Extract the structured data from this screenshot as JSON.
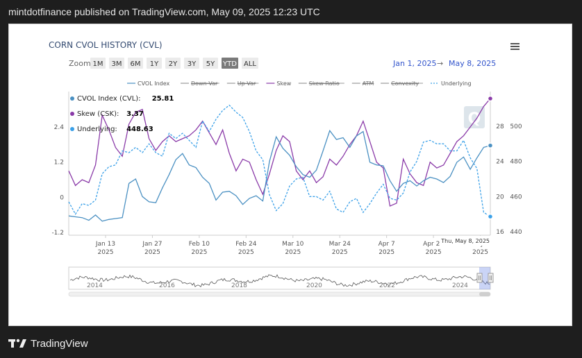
{
  "header": {
    "text": "mintdotfinance published on TradingView.com, May 09, 2025 12:23 UTC"
  },
  "footer": {
    "brand": "TradingView"
  },
  "chart": {
    "title": "CORN CVOL HISTORY (CVL)",
    "zoom_label": "Zoom",
    "zoom_buttons": [
      "1M",
      "3M",
      "6M",
      "1Y",
      "2Y",
      "3Y",
      "5Y",
      "YTD",
      "ALL"
    ],
    "zoom_active": "YTD",
    "date_from": "Jan 1, 2025",
    "date_arrow": "→",
    "date_to": "May 8, 2025",
    "menu_icon": "hamburger-menu-icon",
    "tooltip": {
      "rows": [
        {
          "label": "CVOL Index (CVL):",
          "value": "25.81",
          "color": "#4a90c2"
        },
        {
          "label": "Skew (CSK):",
          "value": "3.37",
          "color": "#8a3aa8"
        },
        {
          "label": "Underlying:",
          "value": "448.63",
          "color": "#3aa0e8"
        }
      ]
    },
    "crosshair_label": "Thu, May 8, 2025",
    "navigator_years": [
      "2014",
      "2016",
      "2018",
      "2020",
      "2022",
      "2024"
    ]
  },
  "chart_data": {
    "type": "line",
    "x_tick_labels": [
      [
        "Jan 13",
        "2025"
      ],
      [
        "Jan 27",
        "2025"
      ],
      [
        "Feb 10",
        "2025"
      ],
      [
        "Feb 24",
        "2025"
      ],
      [
        "Mar 10",
        "2025"
      ],
      [
        "Mar 24",
        "2025"
      ],
      [
        "Apr 7",
        "2025"
      ],
      [
        "Apr 21",
        "2025"
      ],
      [
        "May 5",
        "2025"
      ]
    ],
    "x_tick_days": [
      12,
      26,
      40,
      54,
      68,
      82,
      96,
      110,
      124
    ],
    "x_range": [
      1,
      127
    ],
    "left_axis": {
      "ticks": [
        "2.4",
        "1.2",
        "0",
        "-1.2"
      ],
      "tick_values": [
        2.4,
        1.2,
        0,
        -1.2
      ],
      "range": [
        -1.2,
        3.4
      ]
    },
    "cvol_axis": {
      "ticks": [
        "28",
        "24",
        "20",
        "16"
      ],
      "tick_values": [
        28,
        24,
        20,
        16
      ],
      "range": [
        16,
        32
      ]
    },
    "underlying_axis": {
      "ticks": [
        "500",
        "480",
        "460",
        "440"
      ],
      "tick_values": [
        500,
        480,
        460,
        440
      ],
      "range": [
        440,
        520
      ]
    },
    "legend": [
      {
        "name": "CVOL Index",
        "color": "#4a90c2",
        "dash": "solid",
        "visible": true
      },
      {
        "name": "Down Var",
        "color": "#888888",
        "dash": "solid",
        "visible": false
      },
      {
        "name": "Up Var",
        "color": "#888888",
        "dash": "solid",
        "visible": false
      },
      {
        "name": "Skew",
        "color": "#8a3aa8",
        "dash": "solid",
        "visible": true
      },
      {
        "name": "Skew Ratio",
        "color": "#888888",
        "dash": "solid",
        "visible": false
      },
      {
        "name": "ATM",
        "color": "#888888",
        "dash": "solid",
        "visible": false
      },
      {
        "name": "Convexity",
        "color": "#888888",
        "dash": "solid",
        "visible": false
      },
      {
        "name": "Underlying",
        "color": "#3aa0e8",
        "dash": "dashed",
        "visible": true
      }
    ],
    "series": [
      {
        "name": "Skew",
        "axis": "left",
        "color": "#8a3aa8",
        "x": [
          1,
          3,
          5,
          7,
          9,
          11,
          13,
          15,
          17,
          19,
          21,
          23,
          25,
          27,
          29,
          31,
          33,
          35,
          37,
          39,
          41,
          43,
          45,
          47,
          49,
          51,
          53,
          55,
          57,
          59,
          61,
          63,
          65,
          67,
          69,
          71,
          73,
          75,
          77,
          79,
          81,
          83,
          85,
          87,
          89,
          91,
          93,
          95,
          97,
          99,
          101,
          103,
          105,
          107,
          109,
          111,
          113,
          115,
          117,
          119,
          121,
          123,
          125,
          127
        ],
        "values": [
          0.9,
          0.4,
          0.6,
          0.5,
          1.1,
          2.8,
          2.3,
          1.7,
          1.4,
          2.5,
          2.9,
          3.0,
          2.0,
          1.6,
          1.9,
          2.1,
          1.9,
          2.0,
          2.1,
          2.3,
          2.6,
          2.2,
          1.8,
          2.3,
          1.5,
          0.9,
          1.3,
          1.2,
          0.6,
          0.1,
          0.8,
          1.6,
          2.1,
          1.9,
          0.9,
          0.6,
          0.9,
          0.5,
          0.7,
          1.3,
          1.1,
          1.4,
          1.8,
          2.1,
          2.6,
          1.9,
          1.2,
          1.0,
          -0.3,
          -0.2,
          1.3,
          0.8,
          0.5,
          0.4,
          1.2,
          1.0,
          1.1,
          1.5,
          1.9,
          2.1,
          2.4,
          2.7,
          3.1,
          3.37
        ]
      },
      {
        "name": "CVOL Index",
        "axis": "cvol",
        "color": "#4a90c2",
        "x": [
          1,
          3,
          5,
          7,
          9,
          11,
          13,
          15,
          17,
          19,
          21,
          23,
          25,
          27,
          29,
          31,
          33,
          35,
          37,
          39,
          41,
          43,
          45,
          47,
          49,
          51,
          53,
          55,
          57,
          59,
          61,
          63,
          65,
          67,
          69,
          71,
          73,
          75,
          77,
          79,
          81,
          83,
          85,
          87,
          89,
          91,
          93,
          95,
          97,
          99,
          101,
          103,
          105,
          107,
          109,
          111,
          113,
          115,
          117,
          119,
          121,
          123,
          125,
          127
        ],
        "values": [
          17.8,
          17.7,
          17.6,
          17.3,
          17.9,
          17.2,
          17.4,
          17.5,
          17.6,
          21.5,
          22.0,
          20.0,
          19.4,
          19.3,
          21.0,
          22.5,
          24.2,
          24.9,
          23.6,
          23.3,
          22.2,
          21.5,
          19.6,
          20.5,
          20.6,
          20.1,
          19.1,
          19.8,
          20.1,
          19.5,
          24.0,
          26.8,
          25.5,
          24.7,
          23.4,
          22.5,
          22.2,
          23.0,
          25.2,
          27.5,
          26.5,
          26.7,
          25.6,
          26.9,
          27.4,
          23.9,
          23.6,
          23.5,
          21.8,
          20.6,
          21.5,
          21.8,
          21.2,
          21.8,
          22.2,
          22.0,
          21.6,
          22.3,
          23.9,
          24.5,
          23.1,
          24.4,
          25.6,
          25.81
        ]
      },
      {
        "name": "Underlying",
        "axis": "underlying",
        "color": "#3aa0e8",
        "dashed": true,
        "x": [
          1,
          3,
          5,
          7,
          9,
          11,
          13,
          15,
          17,
          19,
          21,
          23,
          25,
          27,
          29,
          31,
          33,
          35,
          37,
          39,
          41,
          43,
          45,
          47,
          49,
          51,
          53,
          55,
          57,
          59,
          61,
          63,
          65,
          67,
          69,
          71,
          73,
          75,
          77,
          79,
          81,
          83,
          85,
          87,
          89,
          91,
          93,
          95,
          97,
          99,
          101,
          103,
          105,
          107,
          109,
          111,
          113,
          115,
          117,
          119,
          121,
          123,
          125,
          127
        ],
        "values": [
          457,
          450,
          456,
          455,
          458,
          473,
          477,
          478,
          486,
          485,
          488,
          485,
          490,
          485,
          483,
          496,
          493,
          496,
          492,
          488,
          503,
          497,
          504,
          509,
          512,
          508,
          505,
          497,
          486,
          481,
          461,
          452,
          456,
          466,
          470,
          471,
          460,
          460,
          458,
          463,
          453,
          451,
          457,
          459,
          451,
          456,
          462,
          467,
          459,
          458,
          462,
          474,
          480,
          491,
          492,
          490,
          490,
          486,
          486,
          492,
          482,
          476,
          451,
          448.63
        ]
      }
    ]
  }
}
